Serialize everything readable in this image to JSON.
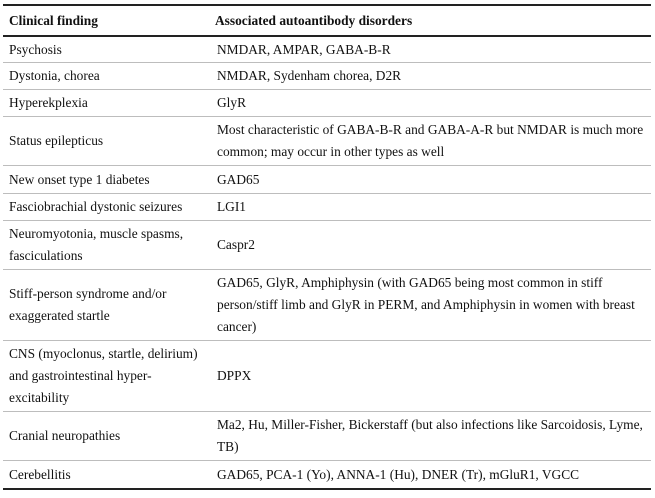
{
  "table": {
    "headers": [
      "Clinical finding",
      "Associated autoantibody disorders"
    ],
    "rows": [
      {
        "finding": "Psychosis",
        "disorders": "NMDAR, AMPAR, GABA-B-R"
      },
      {
        "finding": "Dystonia, chorea",
        "disorders": "NMDAR, Sydenham chorea, D2R"
      },
      {
        "finding": "Hyperekplexia",
        "disorders": "GlyR"
      },
      {
        "finding": "Status epilepticus",
        "disorders": "Most characteristic of GABA-B-R and GABA-A-R but NMDAR is much more common; may occur in other types as well"
      },
      {
        "finding": "New onset type 1 diabetes",
        "disorders": "GAD65"
      },
      {
        "finding": "Fasciobrachial dystonic seizures",
        "disorders": "LGI1"
      },
      {
        "finding": "Neuromyotonia, muscle spasms, fasciculations",
        "disorders": "Caspr2"
      },
      {
        "finding": "Stiff-person syndrome and/or exaggerated startle",
        "disorders": "GAD65, GlyR, Amphiphysin (with GAD65 being most common in stiff person/stiff limb and GlyR in PERM, and Amphiphysin in women with breast cancer)"
      },
      {
        "finding": "CNS (myoclonus, startle, delirium) and gastrointestinal hyper-excitability",
        "disorders": "DPPX"
      },
      {
        "finding": "Cranial neuropathies",
        "disorders": "Ma2, Hu, Miller-Fisher, Bickerstaff (but also infections like Sarcoidosis, Lyme, TB)"
      },
      {
        "finding": "Cerebellitis",
        "disorders": "GAD65, PCA-1 (Yo), ANNA-1 (Hu), DNER (Tr), mGluR1, VGCC"
      }
    ]
  }
}
